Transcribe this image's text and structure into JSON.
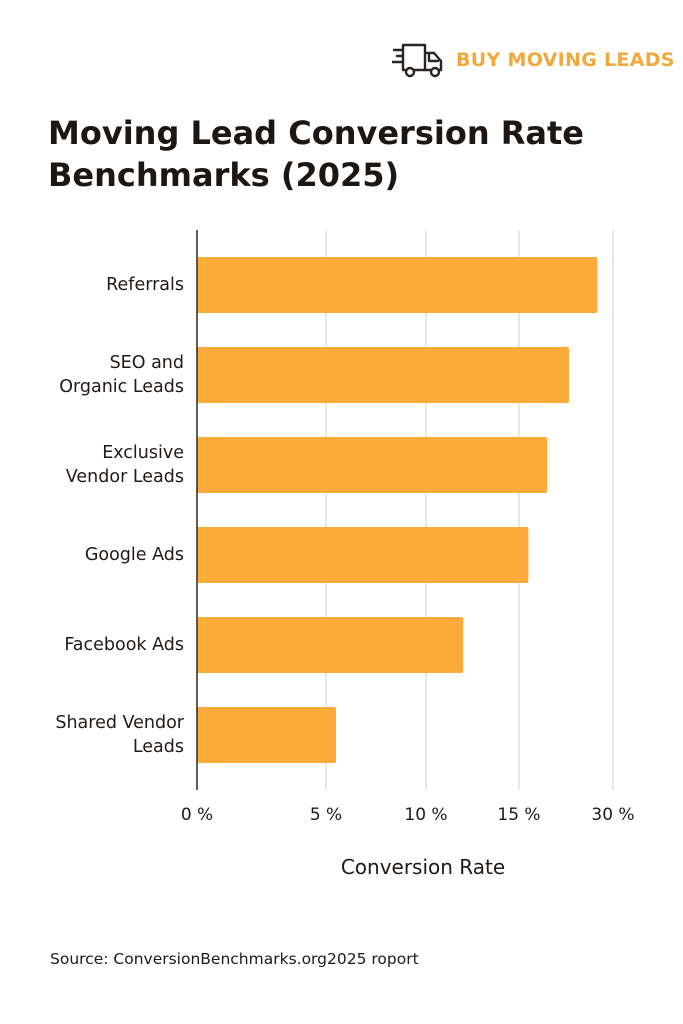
{
  "brand": {
    "name": "BUY MOVING LEADS",
    "icon": "moving-truck-icon",
    "color": "#f2a93b",
    "icon_color": "#2a2522"
  },
  "title": "Moving Lead Conversion Rate Benchmarks (2025)",
  "source": "Source: ConversionBenchmarks.org2025 roport",
  "colors": {
    "bar": "#fcaa3a",
    "axis": "#3a332e",
    "grid": "#dcd8c8"
  },
  "chart_data": {
    "type": "bar",
    "orientation": "horizontal",
    "categories": [
      [
        "Referrals"
      ],
      [
        "SEO and",
        "Organic Leads"
      ],
      [
        "Exclusive",
        "Vendor Leads"
      ],
      [
        "Google Ads"
      ],
      [
        "Facebook Ads"
      ],
      [
        "Shared Vendor",
        "Leads"
      ]
    ],
    "values": [
      27.5,
      23,
      19.5,
      16.5,
      12,
      5.5
    ],
    "xticks": [
      0,
      5,
      10,
      15,
      30
    ],
    "xtick_labels": [
      "0 %",
      "5 %",
      "10 %",
      "15 %",
      "30 %"
    ],
    "xlabel": "Conversion Rate",
    "grid": "vertical",
    "note": "x-axis ticks are unevenly spaced; values estimated against printed ticks"
  }
}
